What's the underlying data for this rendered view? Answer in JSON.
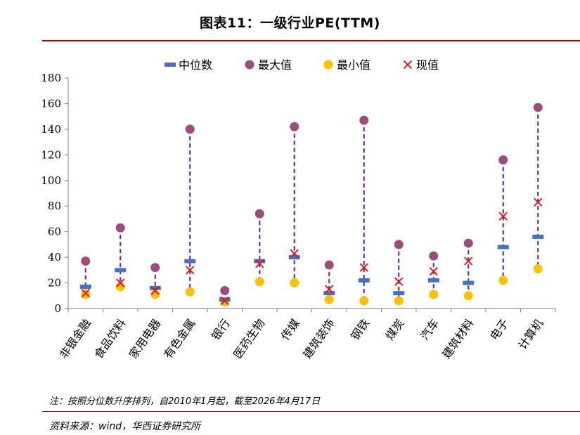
{
  "title": "图表11：一级行业PE(TTM)",
  "note": "注：按照分位数升序排列，自2010年1月起，截至2026年4月17日",
  "source": "资料来源：wind，华西证券研究所",
  "chart_data": {
    "type": "scatter",
    "title": "图表11：一级行业PE(TTM)",
    "ylim": [
      0,
      180
    ],
    "yticks": [
      0,
      20,
      40,
      60,
      80,
      100,
      120,
      140,
      160,
      180
    ],
    "categories": [
      "非银金融",
      "食品饮料",
      "家用电器",
      "有色金属",
      "银行",
      "医药生物",
      "传媒",
      "建筑装饰",
      "钢铁",
      "煤炭",
      "汽车",
      "建筑材料",
      "电子",
      "计算机"
    ],
    "series": [
      {
        "name": "中位数",
        "marker": "dash",
        "color": "#4472c4",
        "values": [
          17,
          30,
          16,
          37,
          7,
          37,
          40,
          12,
          22,
          12,
          22,
          20,
          48,
          56
        ]
      },
      {
        "name": "最大值",
        "marker": "circle",
        "color": "#9e4a7a",
        "values": [
          37,
          63,
          32,
          140,
          14,
          74,
          142,
          34,
          147,
          50,
          41,
          51,
          116,
          157
        ]
      },
      {
        "name": "最小值",
        "marker": "circle",
        "color": "#ffc000",
        "values": [
          11,
          17,
          11,
          13,
          5,
          21,
          20,
          7,
          6,
          6,
          11,
          10,
          22,
          31
        ]
      },
      {
        "name": "现值",
        "marker": "x",
        "color": "#ff0000",
        "values": [
          12,
          20,
          14,
          30,
          6,
          35,
          43,
          15,
          32,
          21,
          29,
          37,
          72,
          83
        ]
      }
    ],
    "range_line_color": "#7030a0",
    "legend": "top-center",
    "grid": false
  }
}
